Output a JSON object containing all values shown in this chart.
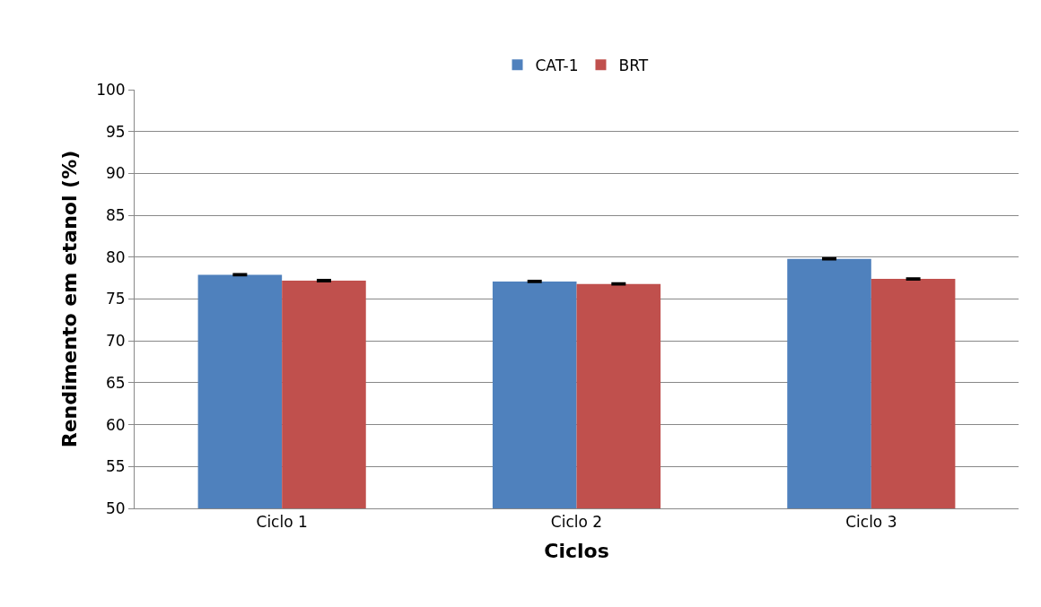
{
  "chart_data": {
    "type": "bar",
    "xlabel": "Ciclos",
    "ylabel": "Rendimento em etanol (%)",
    "categories": [
      "Ciclo 1",
      "Ciclo 2",
      "Ciclo 3"
    ],
    "series": [
      {
        "name": "CAT-1",
        "color": "#4f81bd",
        "values": [
          77.9,
          77.1,
          79.8
        ],
        "errors": [
          0.1,
          0.1,
          0.1
        ]
      },
      {
        "name": "BRT",
        "color": "#c0504d",
        "values": [
          77.2,
          76.8,
          77.4
        ],
        "errors": [
          0.1,
          0.1,
          0.1
        ]
      }
    ],
    "ylim": [
      50,
      100
    ],
    "yticks": [
      50,
      55,
      60,
      65,
      70,
      75,
      80,
      85,
      90,
      95,
      100
    ],
    "grid": "y",
    "legend": "top"
  }
}
